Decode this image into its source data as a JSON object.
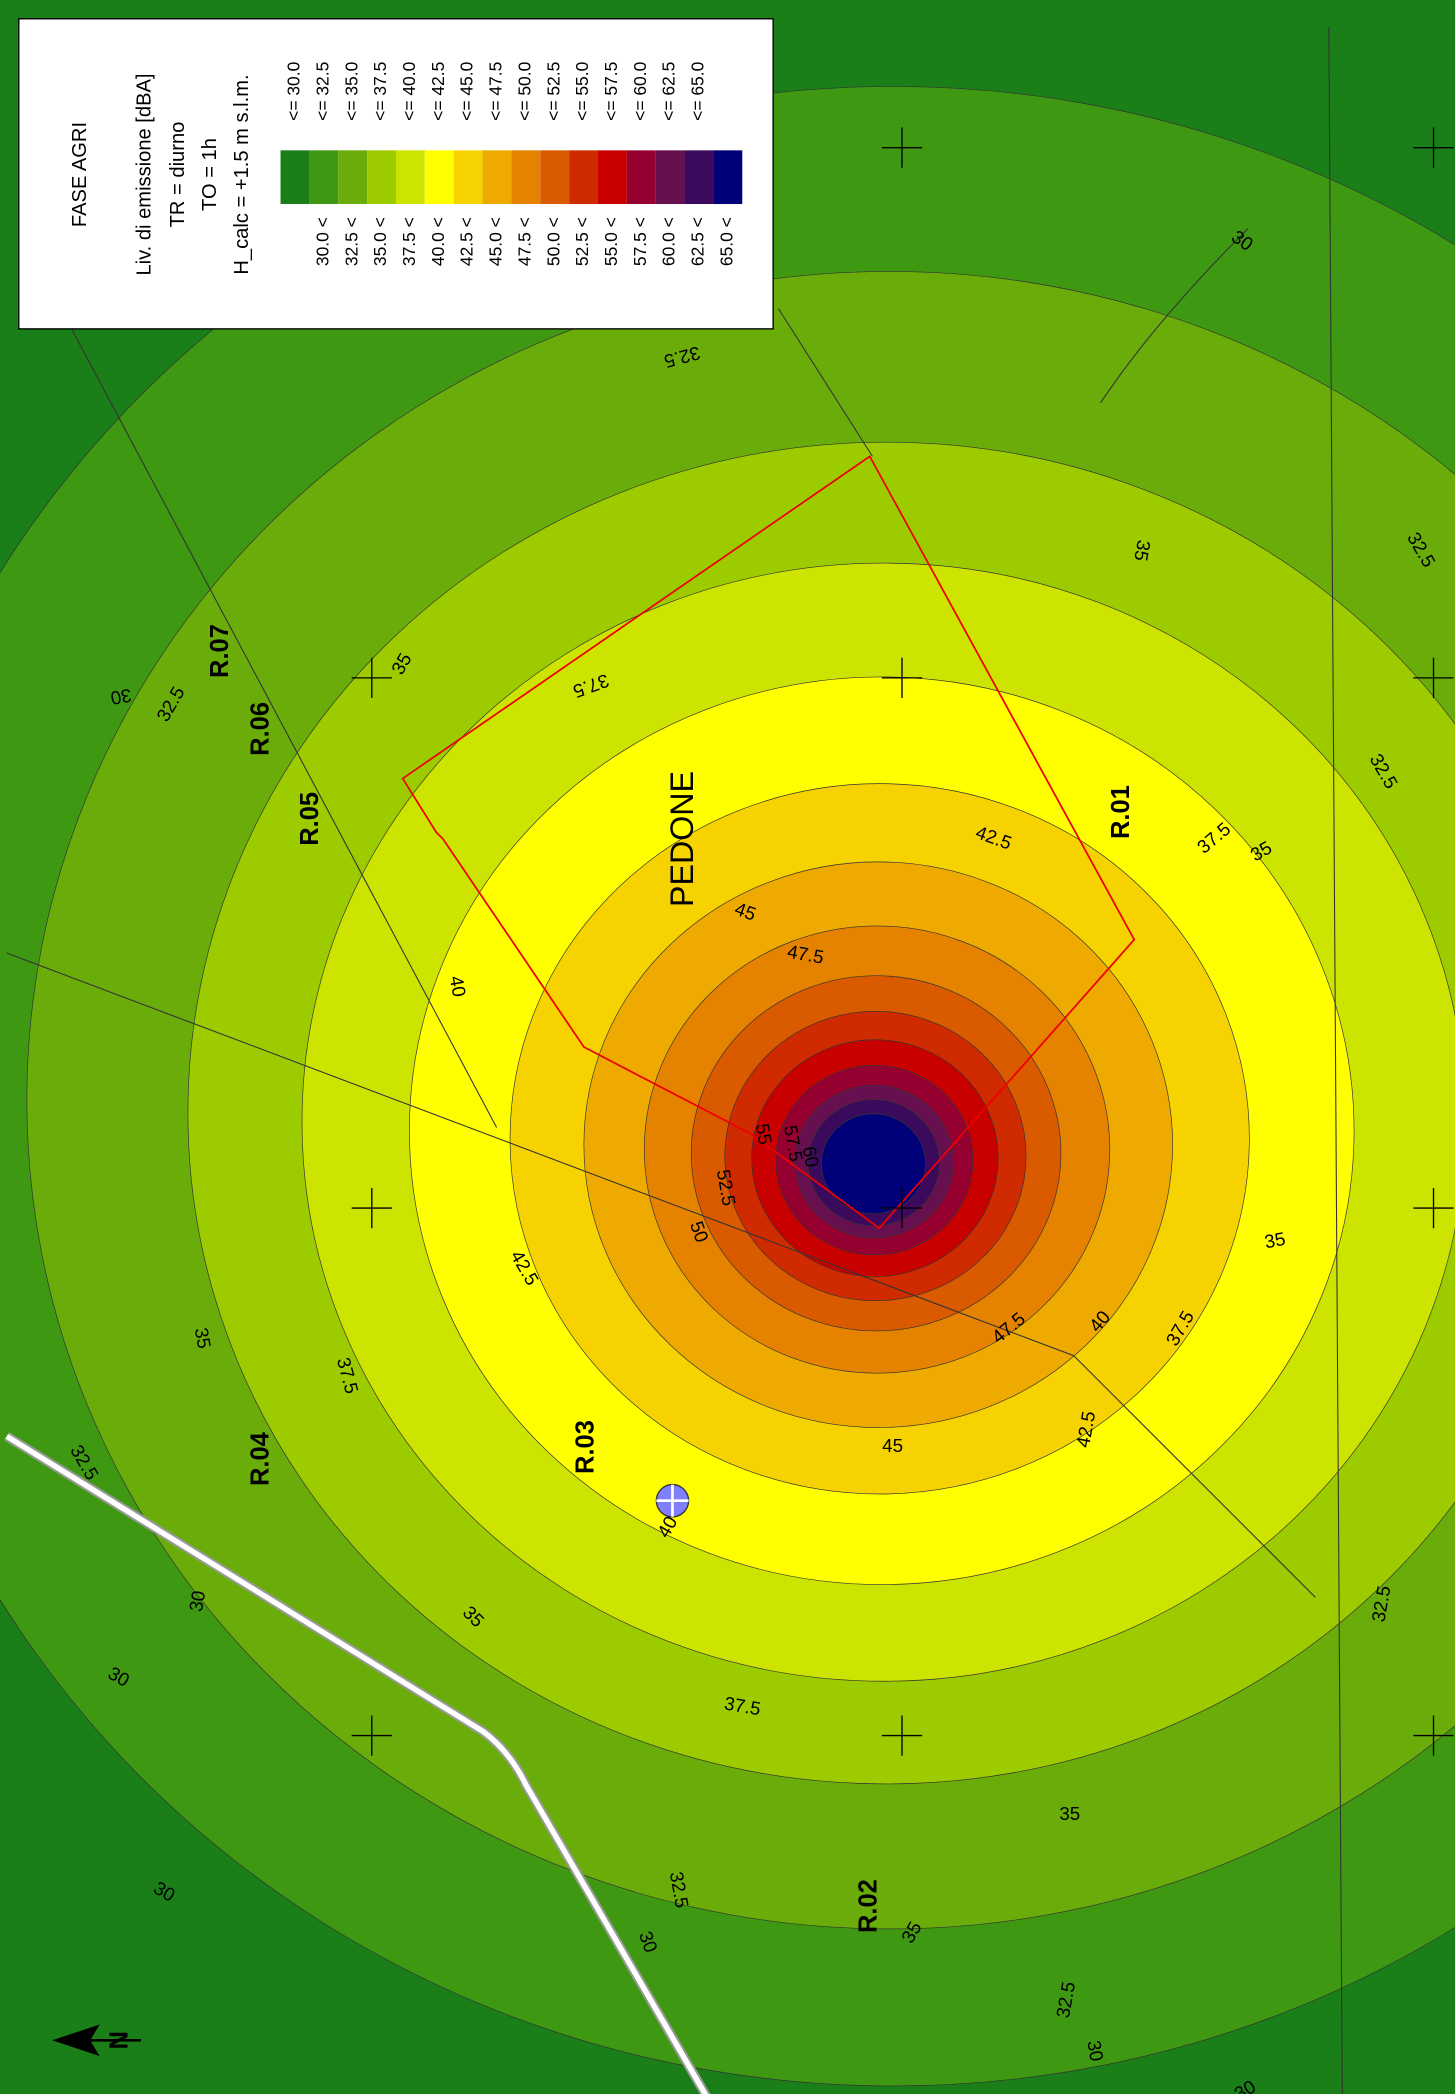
{
  "map": {
    "place": "PEDONE",
    "receptors": [
      "R.01",
      "R.02",
      "R.03",
      "R.04",
      "R.05",
      "R.06",
      "R.07"
    ],
    "contour_labels": [
      "30",
      "32.5",
      "35",
      "32.5",
      "37.5",
      "35",
      "30",
      "32.5",
      "42.5",
      "32.5",
      "37.5",
      "35",
      "45",
      "47.5",
      "40",
      "55",
      "57.5",
      "60",
      "52.5",
      "50",
      "35",
      "42.5",
      "35",
      "47.5",
      "40",
      "37.5",
      "37.5",
      "42.5",
      "45",
      "32.5",
      "40",
      "32.5",
      "30",
      "35",
      "30",
      "37.5",
      "35",
      "30",
      "32.5",
      "30",
      "35",
      "32.5",
      "30",
      "30"
    ],
    "north": "N"
  },
  "legend": {
    "title": "FASE AGRI",
    "lines": [
      "Liv. di emissione [dBA]",
      "TR = diurno",
      "TO = 1h",
      "H_calc = +1.5 m s.l.m."
    ],
    "entries": [
      {
        "upper": "<= 30.0",
        "color": "#1a7f18"
      },
      {
        "lower": "30.0 <",
        "upper": "<= 32.5",
        "color": "#3f9812"
      },
      {
        "lower": "32.5 <",
        "upper": "<= 35.0",
        "color": "#6aad0a"
      },
      {
        "lower": "35.0 <",
        "upper": "<= 37.5",
        "color": "#9ccb00"
      },
      {
        "lower": "37.5 <",
        "upper": "<= 40.0",
        "color": "#cde300"
      },
      {
        "lower": "40.0 <",
        "upper": "<= 42.5",
        "color": "#ffff00"
      },
      {
        "lower": "42.5 <",
        "upper": "<= 45.0",
        "color": "#f6d300"
      },
      {
        "lower": "45.0 <",
        "upper": "<= 47.5",
        "color": "#eeaa00"
      },
      {
        "lower": "47.5 <",
        "upper": "<= 50.0",
        "color": "#e58200"
      },
      {
        "lower": "50.0 <",
        "upper": "<= 52.5",
        "color": "#da5a00"
      },
      {
        "lower": "52.5 <",
        "upper": "<= 55.0",
        "color": "#d02a00"
      },
      {
        "lower": "55.0 <",
        "upper": "<= 57.5",
        "color": "#c80000"
      },
      {
        "lower": "57.5 <",
        "upper": "<= 60.0",
        "color": "#960030"
      },
      {
        "lower": "60.0 <",
        "upper": "<= 62.5",
        "color": "#661050"
      },
      {
        "lower": "62.5 <",
        "upper": "<= 65.0",
        "color": "#3c0a5c"
      },
      {
        "lower": "65.0 <",
        "color": "#000078"
      }
    ]
  }
}
